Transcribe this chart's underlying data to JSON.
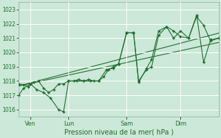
{
  "bg_color": "#cce8d8",
  "grid_color": "#b0d8c0",
  "line_color": "#1a6b2a",
  "xlabel": "Pression niveau de la mer( hPa )",
  "ylim": [
    1015.5,
    1023.5
  ],
  "yticks": [
    1016,
    1017,
    1018,
    1019,
    1020,
    1021,
    1022,
    1023
  ],
  "x_tick_labels": [
    "Ven",
    "Lun",
    "Sam",
    "Dim"
  ],
  "x_tick_positions": [
    12,
    50,
    108,
    162
  ],
  "xlim": [
    0,
    200
  ],
  "series1_x": [
    0,
    5,
    10,
    15,
    20,
    25,
    30,
    35,
    40,
    45,
    50,
    55,
    60,
    65,
    70,
    75,
    80,
    85,
    90,
    95,
    100,
    108,
    115,
    120,
    128,
    133,
    140,
    148,
    155,
    162,
    170,
    178,
    185,
    192,
    200
  ],
  "series1_y": [
    1017.8,
    1017.75,
    1017.6,
    1017.9,
    1018.0,
    1017.5,
    1017.2,
    1017.4,
    1017.8,
    1017.8,
    1018.0,
    1018.0,
    1018.1,
    1018.0,
    1018.1,
    1018.0,
    1018.0,
    1018.3,
    1018.8,
    1019.0,
    1019.2,
    1021.35,
    1021.4,
    1018.0,
    1018.8,
    1019.0,
    1021.2,
    1021.8,
    1021.5,
    1021.1,
    1021.0,
    1022.5,
    1021.9,
    1020.8,
    1021.0
  ],
  "series2_x": [
    0,
    5,
    12,
    18,
    25,
    32,
    40,
    45,
    50,
    58,
    65,
    72,
    80,
    88,
    95,
    100,
    108,
    115,
    120,
    128,
    133,
    140,
    148,
    155,
    162,
    170,
    178,
    185,
    192,
    200
  ],
  "series2_y": [
    1017.0,
    1017.5,
    1017.8,
    1017.4,
    1017.2,
    1016.8,
    1016.0,
    1015.85,
    1018.0,
    1018.0,
    1018.0,
    1018.0,
    1018.0,
    1018.8,
    1018.9,
    1019.2,
    1021.4,
    1021.35,
    1017.9,
    1018.9,
    1019.5,
    1021.5,
    1021.8,
    1021.0,
    1021.5,
    1021.0,
    1022.6,
    1019.3,
    1020.9,
    1021.0
  ],
  "trend1_x": [
    0,
    200
  ],
  "trend1_y": [
    1017.65,
    1020.7
  ],
  "trend2_x": [
    0,
    200
  ],
  "trend2_y": [
    1017.65,
    1021.35
  ]
}
